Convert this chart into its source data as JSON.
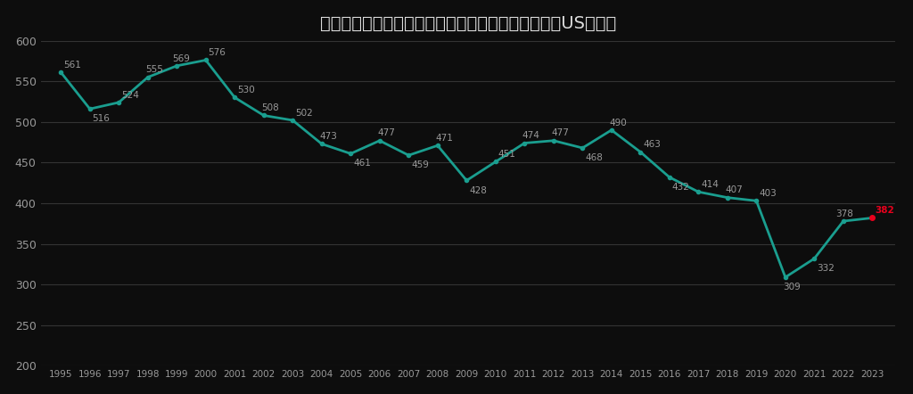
{
  "title": "アメリカの国内線の平均価格（インフレ補正済）（USドル）",
  "years": [
    1995,
    1996,
    1997,
    1998,
    1999,
    2000,
    2001,
    2002,
    2003,
    2004,
    2005,
    2006,
    2007,
    2008,
    2009,
    2010,
    2011,
    2012,
    2013,
    2014,
    2015,
    2016,
    2017,
    2018,
    2019,
    2020,
    2021,
    2022,
    2023
  ],
  "values": [
    561,
    516,
    524,
    555,
    569,
    576,
    530,
    508,
    502,
    473,
    461,
    477,
    459,
    471,
    428,
    451,
    474,
    477,
    468,
    490,
    463,
    432,
    414,
    407,
    403,
    309,
    332,
    378,
    382
  ],
  "line_color": "#1a9e8f",
  "last_point_color": "#e8001c",
  "background_color": "#0d0d0d",
  "text_color": "#999999",
  "title_color": "#dddddd",
  "grid_color": "#333333",
  "ylim": [
    200,
    600
  ],
  "yticks": [
    200,
    250,
    300,
    350,
    400,
    450,
    500,
    550,
    600
  ],
  "title_fontsize": 14,
  "label_fontsize": 7.5,
  "line_width": 2.0
}
